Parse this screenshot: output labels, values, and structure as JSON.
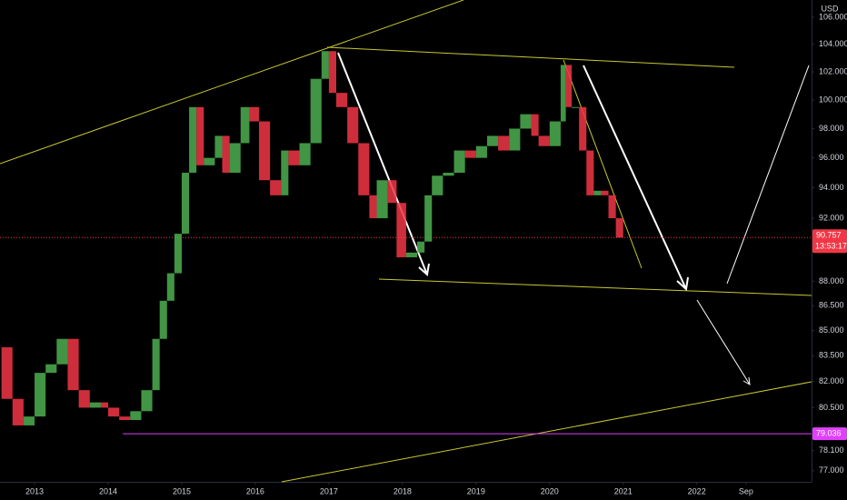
{
  "chart_data": {
    "type": "candlestick",
    "currency": "USD",
    "x": [
      2012.55,
      2012.7,
      2012.85,
      2013.0,
      2013.15,
      2013.3,
      2013.45,
      2013.6,
      2013.75,
      2013.9,
      2014.0,
      2014.15,
      2014.3,
      2014.45,
      2014.6,
      2014.7,
      2014.8,
      2014.9,
      2015.0,
      2015.1,
      2015.2,
      2015.3,
      2015.45,
      2015.55,
      2015.65,
      2015.8,
      2015.92,
      2016.05,
      2016.2,
      2016.35,
      2016.45,
      2016.6,
      2016.75,
      2016.9,
      2017.0,
      2017.1,
      2017.25,
      2017.4,
      2017.55,
      2017.65,
      2017.8,
      2017.92,
      2018.05,
      2018.2,
      2018.3,
      2018.4,
      2018.55,
      2018.7,
      2018.85,
      2019.0,
      2019.15,
      2019.3,
      2019.45,
      2019.6,
      2019.75,
      2019.85,
      2020.0,
      2020.15,
      2020.22,
      2020.3,
      2020.4,
      2020.5,
      2020.6,
      2020.7,
      2020.8,
      2020.9,
      2021.0
    ],
    "values": [
      84,
      81,
      79.5,
      80,
      82.5,
      83,
      84.5,
      81.5,
      80.5,
      80.8,
      80.5,
      80,
      79.8,
      80.3,
      81.5,
      84.5,
      86.8,
      88.5,
      91,
      95,
      99.5,
      95.5,
      96,
      97.5,
      95,
      97,
      99.5,
      98.5,
      94.5,
      93.5,
      96.5,
      95.5,
      97,
      101.5,
      103.5,
      100.5,
      99.5,
      97,
      93.5,
      92,
      94.5,
      93,
      89.5,
      89.8,
      90.5,
      93.5,
      94.8,
      95,
      96.5,
      96,
      96.8,
      97.5,
      96.5,
      98,
      99,
      97.5,
      96.8,
      98.5,
      102.5,
      99.5,
      99.5,
      96.5,
      93.5,
      93.8,
      93.5,
      92,
      90.757
    ],
    "up_color": "#4caf50",
    "down_color": "#f23645",
    "xlim": [
      2012.53,
      2023.56
    ],
    "xticks": [
      2013,
      2014,
      2015,
      2016,
      2017,
      2018,
      2019,
      2020,
      2021,
      2022,
      {
        "value": 2022.67,
        "label": "Sep"
      }
    ],
    "ylim": [
      76.4,
      107.3
    ],
    "log_scale": true,
    "grid": false,
    "yticks": [
      {
        "value": 106,
        "label": "106.000"
      },
      {
        "value": 104,
        "label": "104.000"
      },
      {
        "value": 102,
        "label": "102.000"
      },
      {
        "value": 100,
        "label": "100.000"
      },
      {
        "value": 98,
        "label": "98.000"
      },
      {
        "value": 96,
        "label": "96.000"
      },
      {
        "value": 94,
        "label": "94.000"
      },
      {
        "value": 92,
        "label": "92.000"
      },
      {
        "value": 88,
        "label": "88.000"
      },
      {
        "value": 86.5,
        "label": "86.500"
      },
      {
        "value": 85,
        "label": "85.000"
      },
      {
        "value": 83.5,
        "label": "83.500"
      },
      {
        "value": 82,
        "label": "82.000"
      },
      {
        "value": 80.5,
        "label": "80.500"
      },
      {
        "value": 78.1,
        "label": "78.100"
      },
      {
        "value": 77,
        "label": "77.000"
      }
    ],
    "last_price": 90.757,
    "last_price_time": "13:53:17",
    "last_price_color": "#f23645",
    "level": 79.036,
    "level_color": "#e040fb"
  }
}
